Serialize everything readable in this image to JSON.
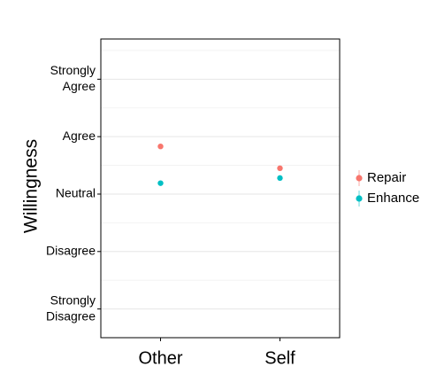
{
  "chart_data": {
    "type": "scatter",
    "ylabel": "Willingness",
    "xlabel": "",
    "categories": [
      "Other",
      "Self"
    ],
    "y_ticks": [
      {
        "value": 1,
        "lines": [
          "Strongly",
          "Disagree"
        ]
      },
      {
        "value": 2,
        "lines": [
          "Disagree"
        ]
      },
      {
        "value": 3,
        "lines": [
          "Neutral"
        ]
      },
      {
        "value": 4,
        "lines": [
          "Agree"
        ]
      },
      {
        "value": 5,
        "lines": [
          "Strongly",
          "Agree"
        ]
      }
    ],
    "ylim": [
      0.5,
      5.7
    ],
    "grid": true,
    "legend_position": "right",
    "series": [
      {
        "name": "Repair",
        "color": "#f8766d",
        "values": [
          3.83,
          3.45
        ]
      },
      {
        "name": "Enhance",
        "color": "#00bfc4",
        "values": [
          3.19,
          3.28
        ]
      }
    ]
  }
}
